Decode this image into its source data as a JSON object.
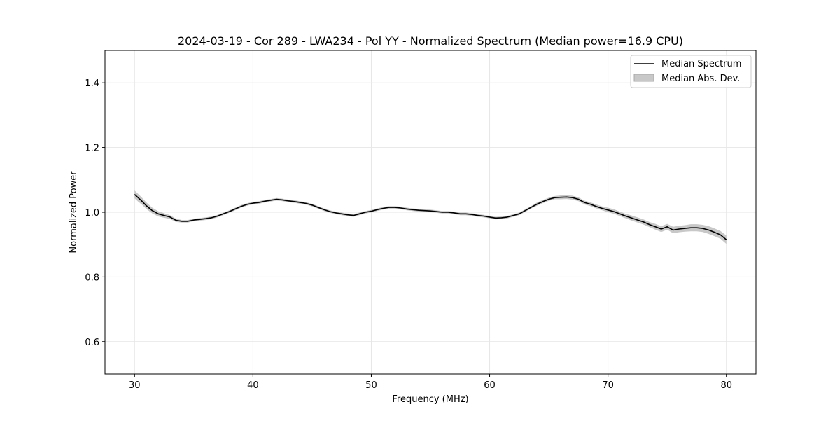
{
  "chart_data": {
    "type": "line",
    "title": "2024-03-19 - Cor 289 - LWA234 - Pol YY - Normalized Spectrum (Median power=16.9 CPU)",
    "xlabel": "Frequency (MHz)",
    "ylabel": "Normalized Power",
    "xlim": [
      27.5,
      82.5
    ],
    "ylim": [
      0.5,
      1.5
    ],
    "x_ticks": [
      30,
      40,
      50,
      60,
      70,
      80
    ],
    "x_tick_labels": [
      "30",
      "40",
      "50",
      "60",
      "70",
      "80"
    ],
    "y_ticks": [
      0.6,
      0.8,
      1.0,
      1.2,
      1.4
    ],
    "y_tick_labels": [
      "0.6",
      "0.8",
      "1.0",
      "1.2",
      "1.4"
    ],
    "grid": true,
    "legend_position": "top-right",
    "legend": {
      "median_label": "Median Spectrum",
      "mad_label": "Median Abs. Dev."
    },
    "colors": {
      "line": "#000000",
      "band": "#c8c8c8",
      "grid": "#e6e6e6"
    },
    "series": [
      {
        "name": "Median Spectrum",
        "x": [
          30.0,
          30.3,
          30.6,
          31.0,
          31.5,
          32.0,
          32.5,
          33.0,
          33.5,
          34.0,
          34.5,
          35.0,
          35.5,
          36.0,
          36.5,
          37.0,
          37.5,
          38.0,
          38.5,
          39.0,
          39.5,
          40.0,
          40.5,
          41.0,
          41.5,
          42.0,
          42.5,
          43.0,
          43.5,
          44.0,
          44.5,
          45.0,
          45.5,
          46.0,
          46.5,
          47.0,
          47.5,
          48.0,
          48.5,
          49.0,
          49.5,
          50.0,
          50.5,
          51.0,
          51.5,
          52.0,
          52.5,
          53.0,
          53.5,
          54.0,
          54.5,
          55.0,
          55.5,
          56.0,
          56.5,
          57.0,
          57.5,
          58.0,
          58.5,
          59.0,
          59.5,
          60.0,
          60.5,
          61.0,
          61.5,
          62.0,
          62.5,
          63.0,
          63.5,
          64.0,
          64.5,
          65.0,
          65.5,
          66.0,
          66.5,
          67.0,
          67.5,
          68.0,
          68.5,
          69.0,
          69.5,
          70.0,
          70.5,
          71.0,
          71.5,
          72.0,
          72.5,
          73.0,
          73.5,
          74.0,
          74.5,
          75.0,
          75.5,
          76.0,
          76.5,
          77.0,
          77.5,
          78.0,
          78.5,
          79.0,
          79.5,
          80.0
        ],
        "values": [
          1.055,
          1.045,
          1.035,
          1.02,
          1.005,
          0.995,
          0.99,
          0.985,
          0.975,
          0.972,
          0.972,
          0.976,
          0.978,
          0.98,
          0.983,
          0.988,
          0.995,
          1.002,
          1.01,
          1.018,
          1.024,
          1.028,
          1.03,
          1.034,
          1.037,
          1.04,
          1.038,
          1.035,
          1.033,
          1.03,
          1.027,
          1.022,
          1.015,
          1.008,
          1.002,
          0.998,
          0.995,
          0.992,
          0.99,
          0.995,
          1.0,
          1.003,
          1.008,
          1.012,
          1.015,
          1.015,
          1.013,
          1.01,
          1.008,
          1.006,
          1.005,
          1.004,
          1.002,
          1.0,
          1.0,
          0.998,
          0.995,
          0.995,
          0.993,
          0.99,
          0.988,
          0.985,
          0.982,
          0.983,
          0.985,
          0.99,
          0.995,
          1.005,
          1.015,
          1.025,
          1.033,
          1.04,
          1.045,
          1.046,
          1.047,
          1.045,
          1.04,
          1.03,
          1.025,
          1.018,
          1.012,
          1.007,
          1.002,
          0.995,
          0.988,
          0.982,
          0.976,
          0.97,
          0.962,
          0.955,
          0.948,
          0.955,
          0.945,
          0.948,
          0.95,
          0.952,
          0.952,
          0.95,
          0.945,
          0.938,
          0.93,
          0.915
        ]
      }
    ],
    "mad_band": [
      0.012,
      0.012,
      0.011,
      0.01,
      0.009,
      0.008,
      0.007,
      0.006,
      0.005,
      0.004,
      0.004,
      0.004,
      0.004,
      0.004,
      0.004,
      0.004,
      0.004,
      0.004,
      0.004,
      0.004,
      0.004,
      0.004,
      0.004,
      0.004,
      0.004,
      0.004,
      0.004,
      0.004,
      0.004,
      0.004,
      0.004,
      0.004,
      0.004,
      0.004,
      0.004,
      0.004,
      0.004,
      0.004,
      0.004,
      0.004,
      0.004,
      0.004,
      0.004,
      0.004,
      0.004,
      0.004,
      0.004,
      0.004,
      0.004,
      0.004,
      0.004,
      0.004,
      0.004,
      0.004,
      0.004,
      0.004,
      0.004,
      0.004,
      0.004,
      0.004,
      0.004,
      0.004,
      0.004,
      0.004,
      0.004,
      0.004,
      0.004,
      0.004,
      0.004,
      0.005,
      0.005,
      0.005,
      0.005,
      0.006,
      0.006,
      0.006,
      0.006,
      0.006,
      0.006,
      0.006,
      0.006,
      0.007,
      0.007,
      0.007,
      0.007,
      0.008,
      0.008,
      0.008,
      0.008,
      0.009,
      0.009,
      0.009,
      0.01,
      0.01,
      0.01,
      0.011,
      0.011,
      0.011,
      0.012,
      0.012,
      0.012,
      0.013
    ]
  }
}
